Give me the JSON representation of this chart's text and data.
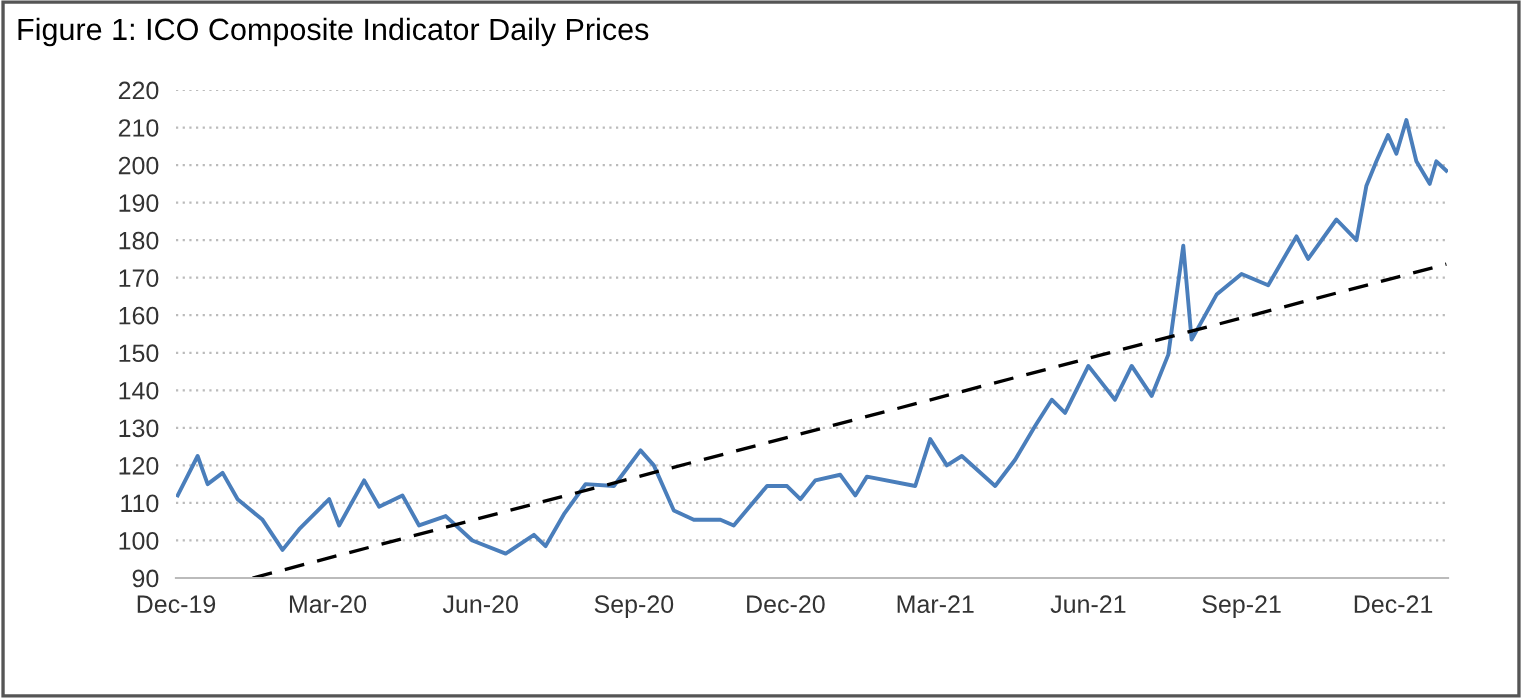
{
  "chart_data": {
    "type": "line",
    "title": "Figure 1: ICO Composite Indicator Daily Prices",
    "series": [
      {
        "color": "#4a7ebb",
        "line_style": "solid",
        "x": [
          "2019-12-02",
          "2019-12-14",
          "2019-12-20",
          "2019-12-29",
          "2020-01-07",
          "2020-01-22",
          "2020-02-03",
          "2020-02-13",
          "2020-03-02",
          "2020-03-08",
          "2020-03-23",
          "2020-04-01",
          "2020-04-15",
          "2020-04-25",
          "2020-05-11",
          "2020-05-27",
          "2020-06-16",
          "2020-07-03",
          "2020-07-10",
          "2020-07-21",
          "2020-08-03",
          "2020-08-20",
          "2020-09-05",
          "2020-09-13",
          "2020-09-25",
          "2020-10-07",
          "2020-10-23",
          "2020-10-31",
          "2020-11-20",
          "2020-12-02",
          "2020-12-10",
          "2020-12-19",
          "2021-01-03",
          "2021-01-12",
          "2021-01-19",
          "2021-02-17",
          "2021-02-26",
          "2021-03-08",
          "2021-03-17",
          "2021-04-06",
          "2021-04-18",
          "2021-04-30",
          "2021-05-10",
          "2021-05-18",
          "2021-06-01",
          "2021-06-17",
          "2021-06-27",
          "2021-07-09",
          "2021-07-19",
          "2021-07-28",
          "2021-08-02",
          "2021-08-17",
          "2021-09-01",
          "2021-09-17",
          "2021-10-04",
          "2021-10-11",
          "2021-10-28",
          "2021-11-09",
          "2021-11-15",
          "2021-11-21",
          "2021-11-28",
          "2021-12-03",
          "2021-12-09",
          "2021-12-15",
          "2021-12-23",
          "2021-12-27",
          "2022-01-02"
        ],
        "values": [
          112,
          122.5,
          115,
          118,
          111,
          105.5,
          97.5,
          103,
          111,
          104,
          116,
          109,
          112,
          104,
          106.5,
          100,
          96.5,
          101.5,
          98.5,
          107,
          115,
          114.5,
          124,
          120,
          108,
          105.5,
          105.5,
          104,
          114.5,
          114.5,
          111,
          116,
          117.5,
          112,
          117,
          114.5,
          127,
          120,
          122.5,
          114.5,
          121.5,
          130.5,
          137.5,
          134,
          146.5,
          137.5,
          146.5,
          138.5,
          149.5,
          178.5,
          153.5,
          165.5,
          171,
          168,
          181,
          175,
          185.5,
          180,
          194.5,
          201,
          208,
          203,
          212,
          201,
          195,
          201,
          198.5
        ]
      },
      {
        "type": "line",
        "color": "#000000",
        "line_style": "dashed",
        "x": [
          "2020-01-16",
          "2022-01-02"
        ],
        "values": [
          90,
          173.6
        ]
      }
    ],
    "xlim": [
      "2019-12-01",
      "2022-01-03"
    ],
    "xticks": [
      {
        "value": "2019-12-01",
        "label": "Dec-19"
      },
      {
        "value": "2020-03-01",
        "label": "Mar-20"
      },
      {
        "value": "2020-06-01",
        "label": "Jun-20"
      },
      {
        "value": "2020-09-01",
        "label": "Sep-20"
      },
      {
        "value": "2020-12-01",
        "label": "Dec-20"
      },
      {
        "value": "2021-03-01",
        "label": "Mar-21"
      },
      {
        "value": "2021-06-01",
        "label": "Jun-21"
      },
      {
        "value": "2021-09-01",
        "label": "Sep-21"
      },
      {
        "value": "2021-12-01",
        "label": "Dec-21"
      }
    ],
    "ylim": [
      90,
      220
    ],
    "yticks": [
      90,
      100,
      110,
      120,
      130,
      140,
      150,
      160,
      170,
      180,
      190,
      200,
      210,
      220
    ],
    "grid": "y",
    "marker": "none"
  }
}
